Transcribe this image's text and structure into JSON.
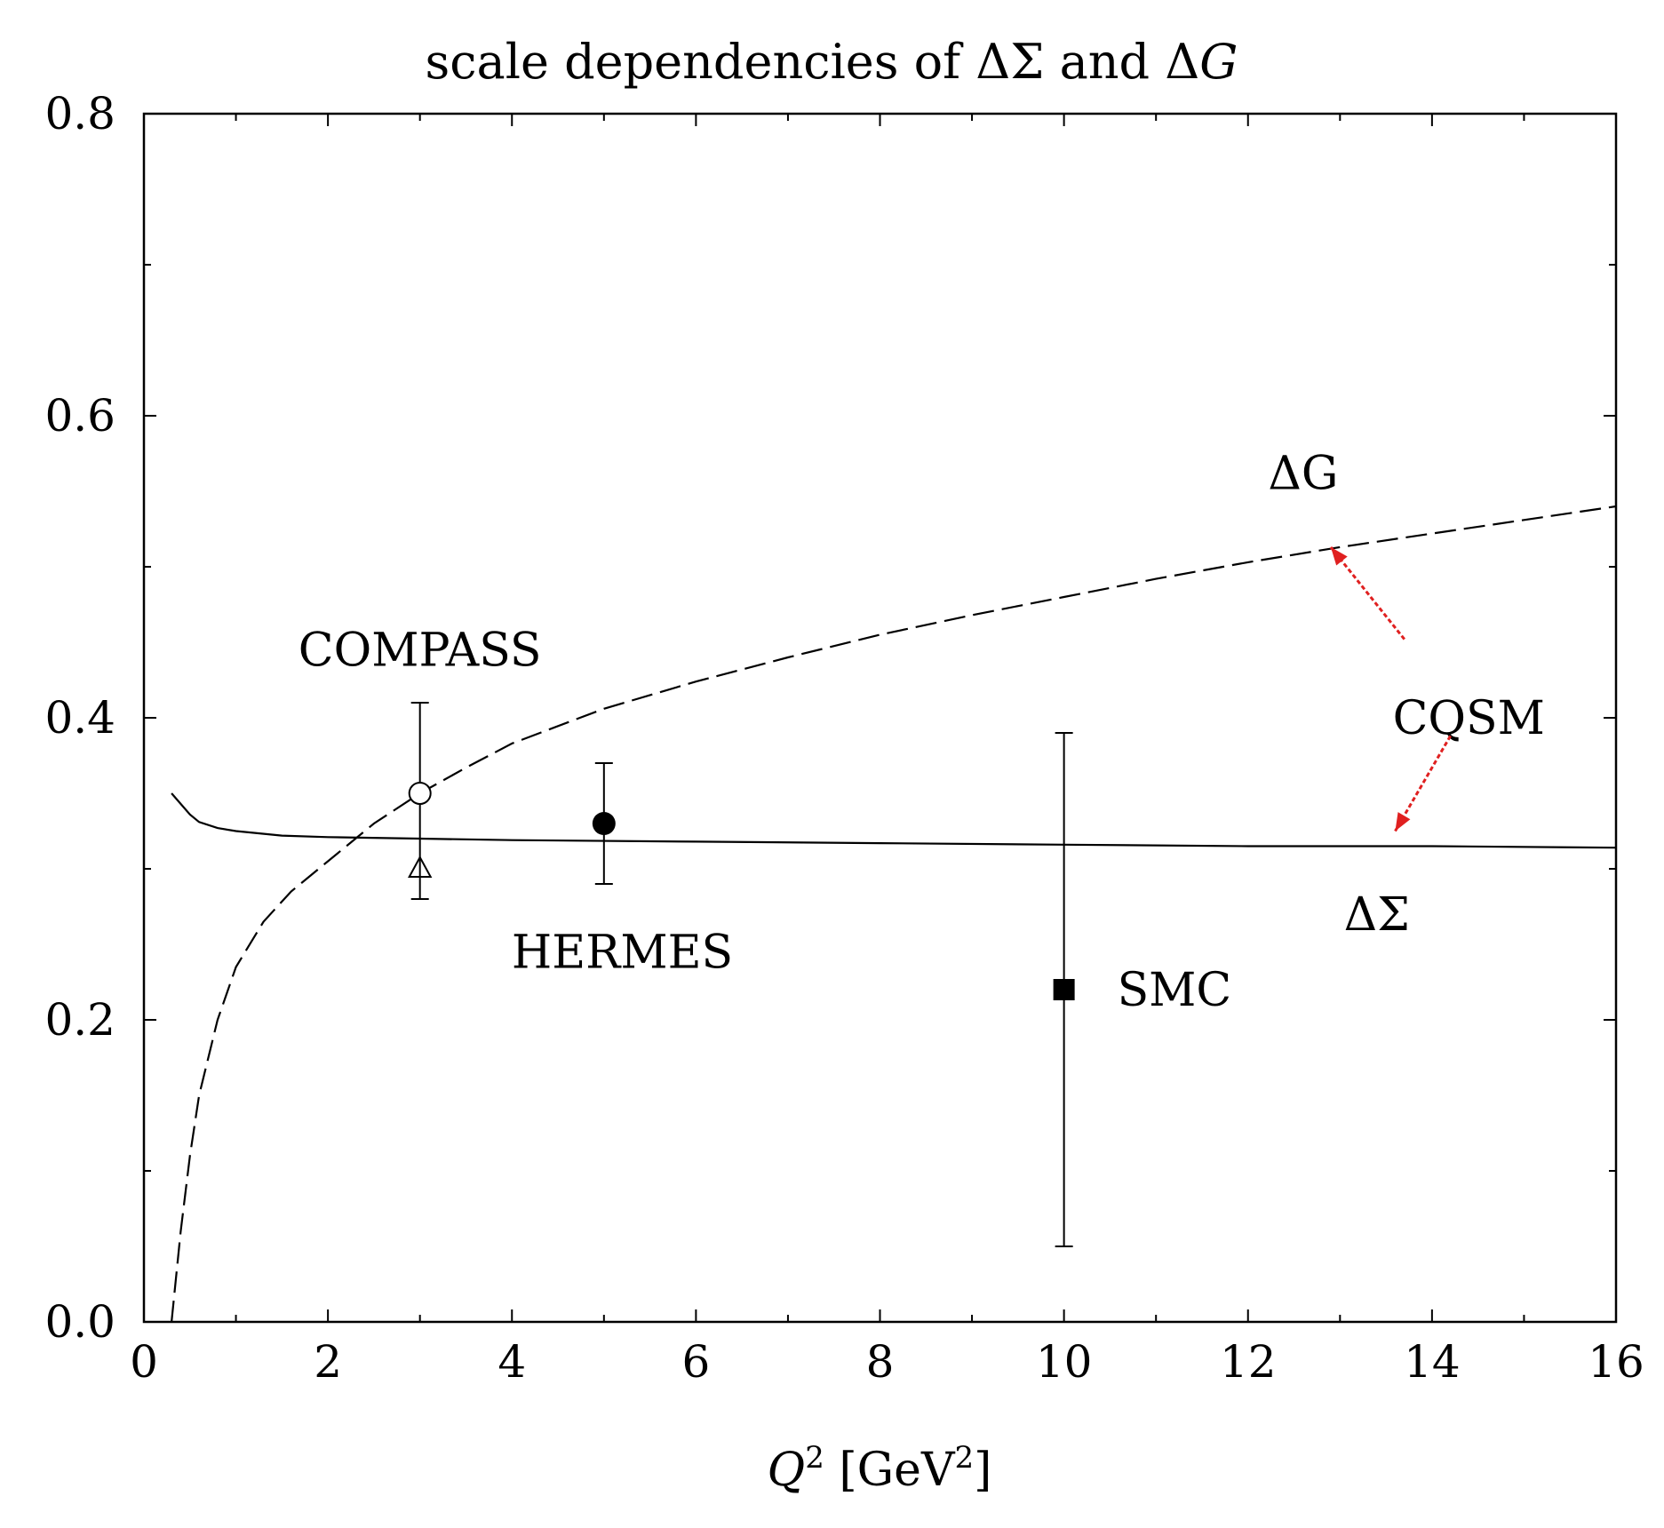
{
  "chart_data": {
    "type": "scatter",
    "title": "scale dependencies of ΔΣ and ΔG",
    "title_parts": {
      "prefix": "scale dependencies of ",
      "ds": "ΔΣ",
      "mid": " and ",
      "delta": "Δ",
      "g": "G"
    },
    "xlabel": {
      "q": "Q",
      "sup": "2",
      "unit_open": " [GeV",
      "unit_sup": "2",
      "unit_close": "]"
    },
    "ylabel": "",
    "xlim": [
      0,
      16
    ],
    "ylim": [
      0,
      0.8
    ],
    "x_ticks": [
      0,
      2,
      4,
      6,
      8,
      10,
      12,
      14,
      16
    ],
    "x_tick_labels": [
      "0",
      "2",
      "4",
      "6",
      "8",
      "10",
      "12",
      "14",
      "16"
    ],
    "y_ticks": [
      0.0,
      0.2,
      0.4,
      0.6,
      0.8
    ],
    "y_tick_labels": [
      "0.0",
      "0.2",
      "0.4",
      "0.6",
      "0.8"
    ],
    "grid": false,
    "curves": [
      {
        "name": "ΔG",
        "style": "dashed",
        "x": [
          0.3,
          0.4,
          0.5,
          0.6,
          0.8,
          1.0,
          1.3,
          1.6,
          2.0,
          2.5,
          3.0,
          3.5,
          4.0,
          5.0,
          6.0,
          7.0,
          8.0,
          9.0,
          10.0,
          11.0,
          12.0,
          13.0,
          14.0,
          15.0,
          16.0
        ],
        "y": [
          0.0,
          0.06,
          0.11,
          0.15,
          0.2,
          0.235,
          0.265,
          0.285,
          0.305,
          0.33,
          0.35,
          0.367,
          0.383,
          0.406,
          0.424,
          0.44,
          0.455,
          0.468,
          0.48,
          0.492,
          0.503,
          0.513,
          0.522,
          0.531,
          0.54
        ]
      },
      {
        "name": "ΔΣ",
        "style": "solid",
        "x": [
          0.3,
          0.4,
          0.5,
          0.6,
          0.8,
          1.0,
          1.5,
          2.0,
          3.0,
          4.0,
          6.0,
          8.0,
          10.0,
          12.0,
          14.0,
          16.0
        ],
        "y": [
          0.35,
          0.343,
          0.336,
          0.331,
          0.327,
          0.325,
          0.322,
          0.321,
          0.32,
          0.319,
          0.318,
          0.317,
          0.316,
          0.315,
          0.315,
          0.314
        ]
      }
    ],
    "points": [
      {
        "name": "COMPASS",
        "marker": "open-circle",
        "x": 3,
        "y": 0.35,
        "err_low": 0.32,
        "err_high": 0.41
      },
      {
        "name": "COMPASS",
        "marker": "open-triangle",
        "x": 3,
        "y": 0.3,
        "err_low": 0.28,
        "err_high": 0.32
      },
      {
        "name": "HERMES",
        "marker": "filled-circle",
        "x": 5,
        "y": 0.33,
        "err_low": 0.29,
        "err_high": 0.37
      },
      {
        "name": "SMC",
        "marker": "filled-square",
        "x": 10,
        "y": 0.22,
        "err_low": 0.05,
        "err_high": 0.39
      }
    ],
    "annotations": [
      {
        "text": "COMPASS",
        "x": 3.0,
        "y": 0.445
      },
      {
        "text": "HERMES",
        "x": 5.2,
        "y": 0.245
      },
      {
        "text": "SMC",
        "x": 11.2,
        "y": 0.22
      },
      {
        "text": "CQSM",
        "x": 14.4,
        "y": 0.4
      },
      {
        "text": "ΔG",
        "x": 12.6,
        "y": 0.562
      },
      {
        "text": "ΔΣ",
        "x": 13.4,
        "y": 0.27
      }
    ],
    "arrows": [
      {
        "label": "CQSM",
        "from": [
          13.7,
          0.452
        ],
        "to": [
          12.9,
          0.513
        ],
        "color": "#e02020"
      },
      {
        "label": "CQSM",
        "from": [
          14.2,
          0.388
        ],
        "to": [
          13.6,
          0.325
        ],
        "color": "#e02020"
      }
    ]
  }
}
